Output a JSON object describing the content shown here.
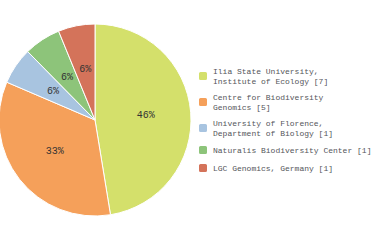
{
  "chart_data": {
    "type": "pie",
    "categories": [
      "Ilia State University,\nInstitute of Ecology [7]",
      "Centre for Biodiversity\nGenomics [5]",
      "University of Florence,\nDepartment of Biology [1]",
      "Naturalis Biodiversity Center [1]",
      "LGC Genomics, Germany [1]"
    ],
    "values": [
      46,
      33,
      6,
      6,
      6
    ],
    "value_labels": [
      "46%",
      "33%",
      "6%",
      "6%",
      "6%"
    ],
    "colors": [
      "#d4e06b",
      "#f5a05a",
      "#a8c4e0",
      "#8dc47a",
      "#d4735a"
    ],
    "data_labels": true,
    "legend": "right"
  }
}
